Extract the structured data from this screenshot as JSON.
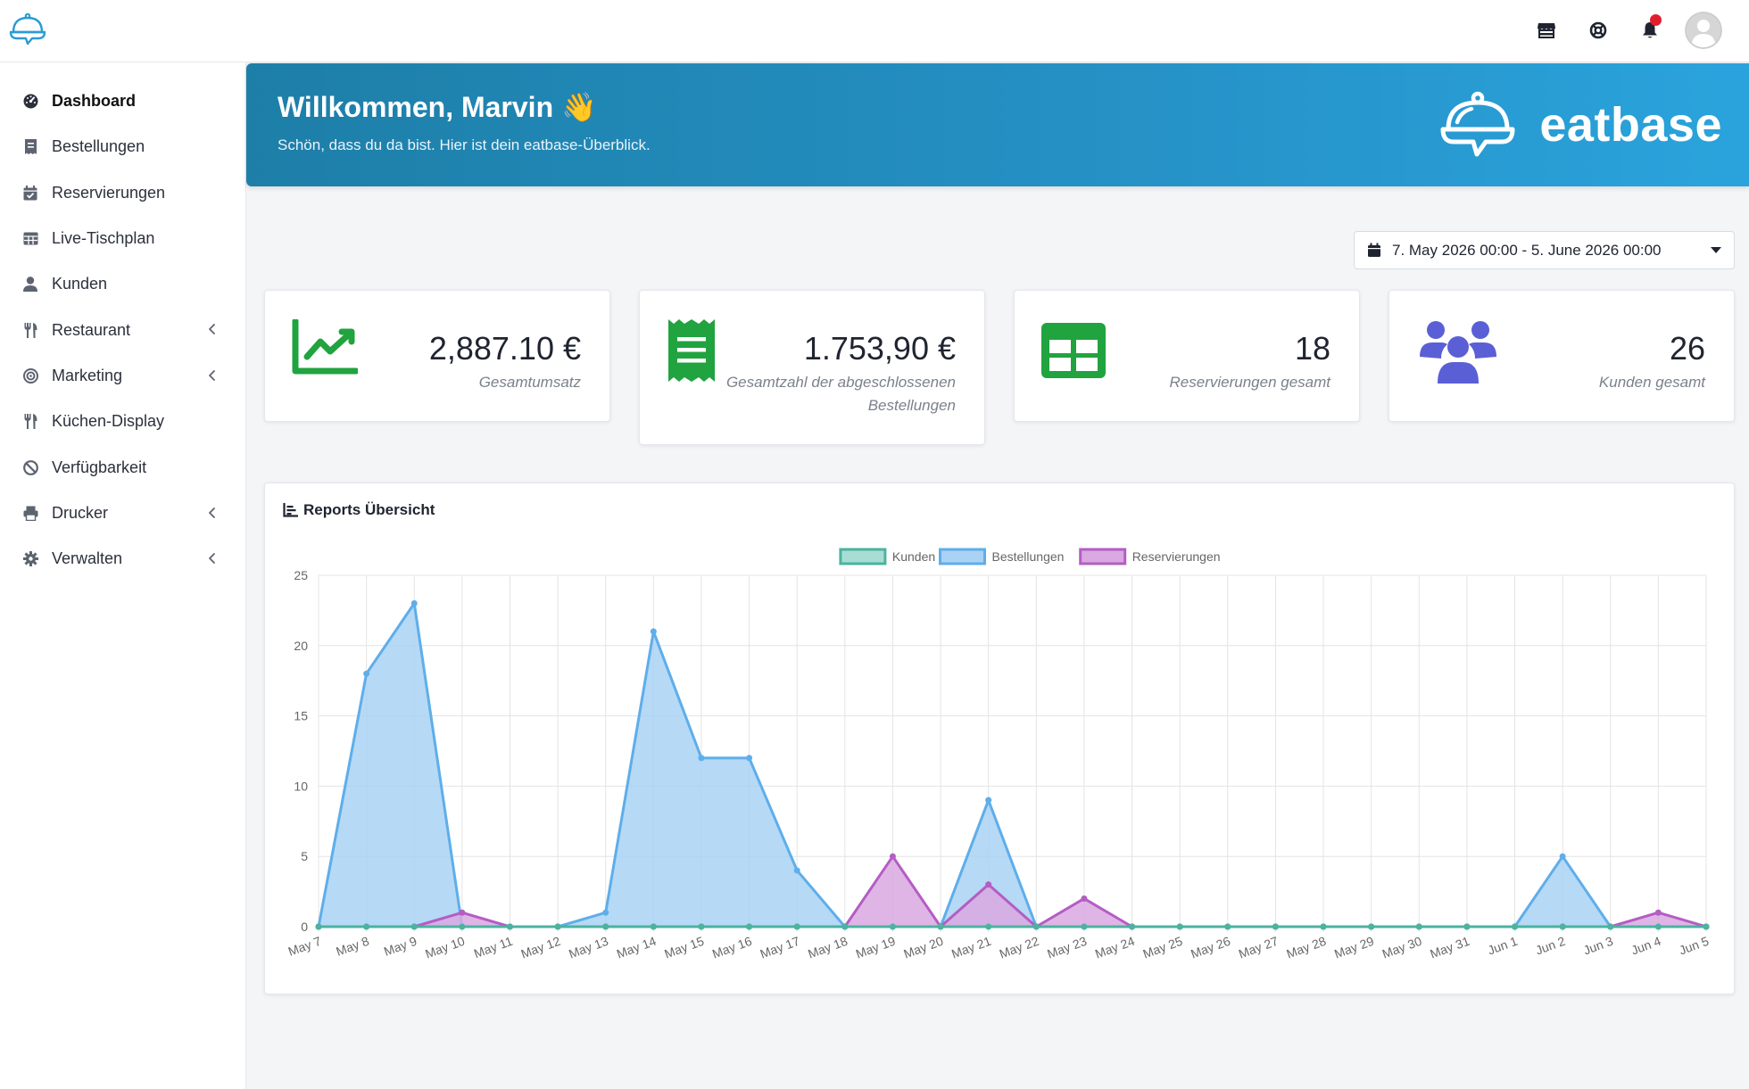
{
  "topbar": {
    "icons": [
      "store-icon",
      "lifering-icon",
      "bell-icon"
    ],
    "notification_dot": true
  },
  "sidebar": {
    "items": [
      {
        "label": "Dashboard",
        "icon": "dashboard-icon",
        "active": true,
        "has_submenu": false
      },
      {
        "label": "Bestellungen",
        "icon": "receipt-icon",
        "active": false,
        "has_submenu": false
      },
      {
        "label": "Reservierungen",
        "icon": "calendar-check-icon",
        "active": false,
        "has_submenu": false
      },
      {
        "label": "Live-Tischplan",
        "icon": "table-grid-icon",
        "active": false,
        "has_submenu": false
      },
      {
        "label": "Kunden",
        "icon": "user-icon",
        "active": false,
        "has_submenu": false
      },
      {
        "label": "Restaurant",
        "icon": "utensils-icon",
        "active": false,
        "has_submenu": true
      },
      {
        "label": "Marketing",
        "icon": "target-icon",
        "active": false,
        "has_submenu": true
      },
      {
        "label": "Küchen-Display",
        "icon": "utensils-icon",
        "active": false,
        "has_submenu": false
      },
      {
        "label": "Verfügbarkeit",
        "icon": "ban-icon",
        "active": false,
        "has_submenu": false
      },
      {
        "label": "Drucker",
        "icon": "printer-icon",
        "active": false,
        "has_submenu": true
      },
      {
        "label": "Verwalten",
        "icon": "gear-icon",
        "active": false,
        "has_submenu": true
      }
    ]
  },
  "banner": {
    "title": "Willkommen, Marvin 👋",
    "subtitle": "Schön, dass du da bist. Hier ist dein eatbase-Überblick.",
    "brand": "eatbase"
  },
  "daterange": {
    "label": "7. May 2026 00:00 - 5. June 2026 00:00"
  },
  "stats": [
    {
      "value": "2,887.10 €",
      "label": "Gesamtumsatz",
      "icon": "chart-line-icon",
      "color": "#21a33f"
    },
    {
      "value": "1.753,90 €",
      "label": "Gesamtzahl der abgeschlossenen Bestellungen",
      "icon": "receipt-icon",
      "color": "#21a33f"
    },
    {
      "value": "18",
      "label": "Reservierungen gesamt",
      "icon": "table-icon",
      "color": "#21a33f"
    },
    {
      "value": "26",
      "label": "Kunden gesamt",
      "icon": "users-icon",
      "color": "#5b5fd6"
    }
  ],
  "report": {
    "title": "Reports Übersicht"
  },
  "chart_data": {
    "type": "area",
    "categories": [
      "May 7",
      "May 8",
      "May 9",
      "May 10",
      "May 11",
      "May 12",
      "May 13",
      "May 14",
      "May 15",
      "May 16",
      "May 17",
      "May 18",
      "May 19",
      "May 20",
      "May 21",
      "May 22",
      "May 23",
      "May 24",
      "May 25",
      "May 26",
      "May 27",
      "May 28",
      "May 29",
      "May 30",
      "May 31",
      "Jun 1",
      "Jun 2",
      "Jun 3",
      "Jun 4",
      "Jun 5"
    ],
    "ylim": [
      0,
      25
    ],
    "yticks": [
      0,
      5,
      10,
      15,
      20,
      25
    ],
    "grid": true,
    "legend_position": "top-center",
    "series": [
      {
        "name": "Kunden",
        "color": "#4bb3a0",
        "fill": "#a8ddd3",
        "values": [
          0,
          0,
          0,
          0,
          0,
          0,
          0,
          0,
          0,
          0,
          0,
          0,
          0,
          0,
          0,
          0,
          0,
          0,
          0,
          0,
          0,
          0,
          0,
          0,
          0,
          0,
          0,
          0,
          0,
          0
        ]
      },
      {
        "name": "Bestellungen",
        "color": "#5eaeea",
        "fill": "#a9d2f5",
        "values": [
          0,
          18,
          23,
          0,
          0,
          0,
          1,
          21,
          12,
          12,
          4,
          0,
          0,
          0,
          9,
          0,
          0,
          0,
          0,
          0,
          0,
          0,
          0,
          0,
          0,
          0,
          5,
          0,
          0,
          0
        ]
      },
      {
        "name": "Reservierungen",
        "color": "#b45dc4",
        "fill": "#d9a8e1",
        "values": [
          0,
          0,
          0,
          1,
          0,
          0,
          0,
          0,
          0,
          0,
          0,
          0,
          5,
          0,
          3,
          0,
          2,
          0,
          0,
          0,
          0,
          0,
          0,
          0,
          0,
          0,
          0,
          0,
          1,
          0
        ]
      }
    ]
  }
}
